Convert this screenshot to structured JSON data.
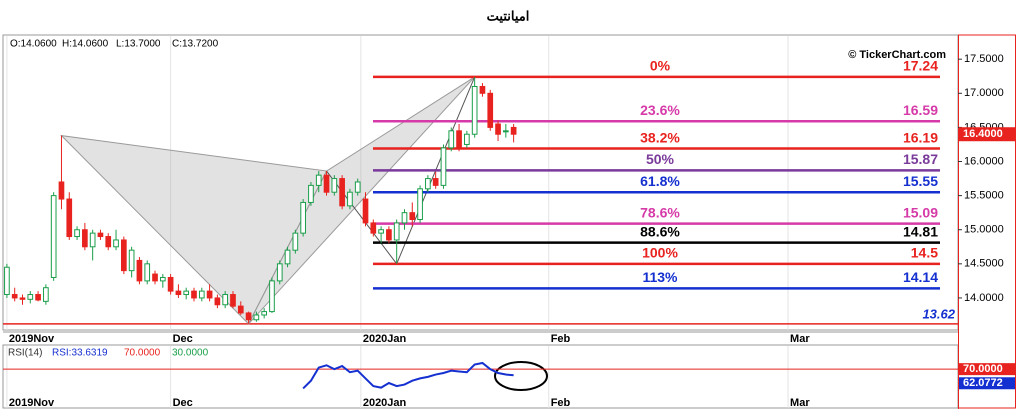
{
  "chart_data": {
    "type": "candlestick",
    "title": "امیانتیت",
    "ohlc_header": [
      "O:14.0600",
      "H:14.0600",
      "L:13.7000",
      "C:13.7200"
    ],
    "watermark": "© TickerChart.com",
    "up_color": "#1a9e4a",
    "down_color": "#e8231f",
    "candles": [
      [
        14.05,
        14.5,
        14.0,
        14.45
      ],
      [
        14.05,
        14.15,
        13.95,
        14.0
      ],
      [
        14.0,
        14.05,
        13.9,
        13.98
      ],
      [
        13.98,
        14.1,
        13.92,
        14.05
      ],
      [
        14.05,
        14.1,
        13.95,
        13.97
      ],
      [
        13.95,
        14.2,
        13.9,
        14.15
      ],
      [
        14.3,
        15.55,
        14.25,
        15.5
      ],
      [
        15.7,
        16.38,
        15.3,
        15.45
      ],
      [
        15.45,
        15.55,
        14.85,
        14.9
      ],
      [
        14.9,
        15.05,
        14.85,
        15.0
      ],
      [
        15.0,
        15.1,
        14.7,
        14.75
      ],
      [
        14.75,
        15.0,
        14.55,
        14.95
      ],
      [
        14.95,
        15.0,
        14.85,
        14.9
      ],
      [
        14.9,
        14.95,
        14.7,
        14.75
      ],
      [
        14.75,
        15.0,
        14.7,
        14.85
      ],
      [
        14.85,
        14.9,
        14.35,
        14.4
      ],
      [
        14.4,
        14.75,
        14.3,
        14.7
      ],
      [
        14.55,
        14.6,
        14.2,
        14.25
      ],
      [
        14.25,
        14.55,
        14.2,
        14.5
      ],
      [
        14.35,
        14.4,
        14.2,
        14.25
      ],
      [
        14.25,
        14.35,
        14.15,
        14.3
      ],
      [
        14.3,
        14.35,
        14.05,
        14.1
      ],
      [
        14.1,
        14.2,
        14.0,
        14.05
      ],
      [
        14.05,
        14.15,
        13.98,
        14.1
      ],
      [
        14.1,
        14.15,
        13.95,
        14.0
      ],
      [
        14.0,
        14.15,
        13.95,
        14.1
      ],
      [
        14.1,
        14.2,
        13.95,
        14.0
      ],
      [
        14.0,
        14.05,
        13.85,
        13.9
      ],
      [
        13.9,
        14.1,
        13.85,
        14.05
      ],
      [
        14.05,
        14.1,
        13.85,
        13.88
      ],
      [
        13.88,
        13.95,
        13.75,
        13.78
      ],
      [
        13.78,
        13.8,
        13.62,
        13.68
      ],
      [
        13.68,
        13.8,
        13.65,
        13.75
      ],
      [
        13.75,
        13.85,
        13.7,
        13.8
      ],
      [
        13.8,
        14.3,
        13.78,
        14.25
      ],
      [
        14.25,
        14.55,
        14.2,
        14.5
      ],
      [
        14.5,
        14.75,
        14.45,
        14.7
      ],
      [
        14.7,
        15.0,
        14.65,
        14.95
      ],
      [
        14.95,
        15.45,
        14.9,
        15.4
      ],
      [
        15.4,
        15.7,
        15.35,
        15.65
      ],
      [
        15.65,
        15.86,
        15.55,
        15.8
      ],
      [
        15.8,
        15.86,
        15.5,
        15.55
      ],
      [
        15.55,
        15.8,
        15.5,
        15.75
      ],
      [
        15.75,
        15.8,
        15.3,
        15.35
      ],
      [
        15.35,
        15.6,
        15.3,
        15.55
      ],
      [
        15.55,
        15.75,
        15.5,
        15.7
      ],
      [
        15.45,
        15.55,
        15.05,
        15.1
      ],
      [
        15.1,
        15.15,
        14.9,
        14.95
      ],
      [
        14.95,
        15.05,
        14.8,
        15.0
      ],
      [
        15.0,
        15.05,
        14.8,
        14.85
      ],
      [
        14.85,
        15.15,
        14.5,
        15.1
      ],
      [
        15.1,
        15.3,
        15.0,
        15.25
      ],
      [
        15.25,
        15.4,
        15.05,
        15.15
      ],
      [
        15.15,
        15.65,
        15.1,
        15.6
      ],
      [
        15.6,
        15.8,
        15.55,
        15.75
      ],
      [
        15.75,
        15.85,
        15.6,
        15.65
      ],
      [
        15.65,
        16.25,
        15.6,
        16.2
      ],
      [
        16.2,
        16.5,
        16.15,
        16.45
      ],
      [
        16.45,
        16.55,
        16.15,
        16.2
      ],
      [
        16.25,
        16.45,
        16.2,
        16.4
      ],
      [
        16.4,
        17.24,
        16.35,
        17.1
      ],
      [
        17.1,
        17.15,
        16.95,
        17.0
      ],
      [
        17.0,
        17.05,
        16.45,
        16.5
      ],
      [
        16.55,
        16.6,
        16.3,
        16.4
      ],
      [
        16.45,
        16.55,
        16.35,
        16.45
      ],
      [
        16.5,
        16.55,
        16.28,
        16.4
      ]
    ],
    "xlim": [
      -0.5,
      122
    ],
    "xticks": [
      {
        "value": 0,
        "label": "2019Nov"
      },
      {
        "value": 21,
        "label": "Dec"
      },
      {
        "value": 45.4,
        "label": "2020Jan"
      },
      {
        "value": 69.5,
        "label": "Feb"
      },
      {
        "value": 100.2,
        "label": "Mar"
      }
    ],
    "ylim": [
      13.53,
      17.84
    ],
    "yticks": [
      {
        "value": 17.5,
        "label": "17.5000"
      },
      {
        "value": 17,
        "label": "17.0000"
      },
      {
        "value": 16.5,
        "label": "16.5000"
      },
      {
        "value": 16,
        "label": "16.0000"
      },
      {
        "value": 15.5,
        "label": "15.5000"
      },
      {
        "value": 15,
        "label": "15.0000"
      },
      {
        "value": 14.5,
        "label": "14.5000"
      },
      {
        "value": 14,
        "label": "14.0000"
      }
    ],
    "last_price": {
      "value": 16.4,
      "label": "16.4000"
    },
    "low_marker": {
      "value": 13.62,
      "color": "#e8231f"
    },
    "pattern_color": "#9a9a9a",
    "pattern_points": [
      {
        "x": 7,
        "y": 16.38
      },
      {
        "x": 31,
        "y": 13.62
      },
      {
        "x": 41,
        "y": 15.86
      },
      {
        "x": 50,
        "y": 14.5
      },
      {
        "x": 60,
        "y": 17.24
      }
    ],
    "fib_levels": [
      {
        "label": "0%",
        "value": 17.24,
        "color": "#e8231f"
      },
      {
        "label": "23.6%",
        "value": 16.59,
        "color": "#d63aa8"
      },
      {
        "label": "38.2%",
        "value": 16.19,
        "color": "#e8231f"
      },
      {
        "label": "50%",
        "value": 15.87,
        "color": "#7a3a9a"
      },
      {
        "label": "61.8%",
        "value": 15.55,
        "color": "#1530d0"
      },
      {
        "label": "78.6%",
        "value": 15.09,
        "color": "#d63aa8"
      },
      {
        "label": "88.6%",
        "value": 14.81,
        "color": "#000000"
      },
      {
        "label": "100%",
        "value": 14.5,
        "color": "#e8231f"
      },
      {
        "label": "113%",
        "value": 14.14,
        "color": "#1530d0"
      }
    ],
    "rsi": {
      "legend": [
        "RSI(14)",
        "RSI:33.6319",
        "70.0000",
        "30.0000"
      ],
      "legend_colors": [
        "#333333",
        "#1530d0",
        "#e8231f",
        "#1a9e4a"
      ],
      "color": "#1530d0",
      "ylim": [
        30,
        100
      ],
      "level": {
        "value": 70,
        "label": "70.0000",
        "color": "#e8231f"
      },
      "last": {
        "value": 62.0772,
        "label": "62.0772"
      },
      "values": [
        null,
        null,
        null,
        null,
        null,
        null,
        null,
        null,
        null,
        null,
        null,
        null,
        null,
        null,
        null,
        null,
        null,
        null,
        null,
        null,
        null,
        null,
        null,
        null,
        null,
        null,
        null,
        null,
        null,
        null,
        null,
        null,
        null,
        null,
        null,
        null,
        null,
        null,
        45,
        55,
        72,
        75,
        70,
        74,
        66,
        68,
        58,
        48,
        46,
        52,
        48,
        50,
        55,
        58,
        60,
        63,
        65,
        68,
        67,
        66,
        76,
        78,
        70,
        65,
        63,
        62.0772
      ]
    }
  }
}
